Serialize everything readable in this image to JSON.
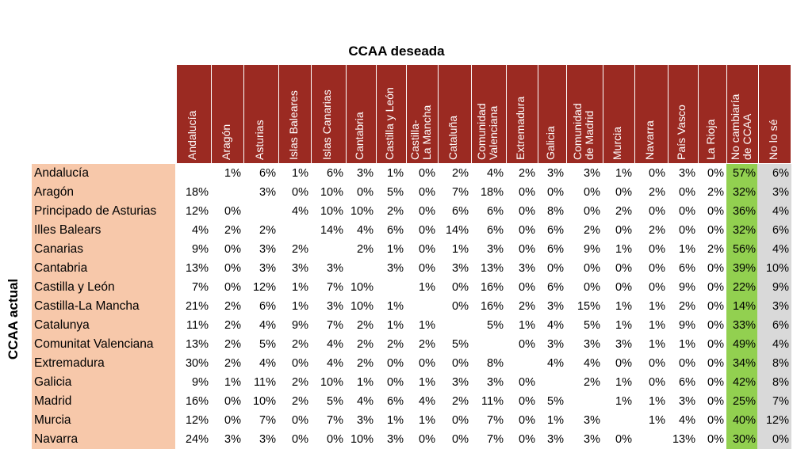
{
  "chart_data": {
    "type": "table",
    "title": "CCAA deseada",
    "ylabel": "CCAA actual",
    "columns": [
      "Andalucía",
      "Aragón",
      "Asturias",
      "Islas Baleares",
      "Islas Canarias",
      "Cantabria",
      "Castilla y León",
      "Castilla-\nLa Mancha",
      "Cataluña",
      "Comunidad\nValenciana",
      "Extremadura",
      "Galicia",
      "Comunidad\nde Madrid",
      "Murcia",
      "Navarra",
      "País Vasco",
      "La Rioja",
      "No cambiaría\nde CCAA",
      "No lo sé"
    ],
    "rows": [
      {
        "label": "Andalucía",
        "values": [
          "",
          "1%",
          "6%",
          "1%",
          "6%",
          "3%",
          "1%",
          "0%",
          "2%",
          "4%",
          "2%",
          "3%",
          "3%",
          "1%",
          "0%",
          "3%",
          "0%",
          "57%",
          "6%"
        ]
      },
      {
        "label": "Aragón",
        "values": [
          "18%",
          "",
          "3%",
          "0%",
          "10%",
          "0%",
          "5%",
          "0%",
          "7%",
          "18%",
          "0%",
          "0%",
          "0%",
          "0%",
          "2%",
          "0%",
          "2%",
          "32%",
          "3%"
        ]
      },
      {
        "label": "Principado de Asturias",
        "values": [
          "12%",
          "0%",
          "",
          "4%",
          "10%",
          "10%",
          "2%",
          "0%",
          "6%",
          "6%",
          "0%",
          "8%",
          "0%",
          "2%",
          "0%",
          "0%",
          "0%",
          "36%",
          "4%"
        ]
      },
      {
        "label": "Illes Balears",
        "values": [
          "4%",
          "2%",
          "2%",
          "",
          "14%",
          "4%",
          "6%",
          "0%",
          "14%",
          "6%",
          "0%",
          "6%",
          "2%",
          "0%",
          "2%",
          "0%",
          "0%",
          "32%",
          "6%"
        ]
      },
      {
        "label": "Canarias",
        "values": [
          "9%",
          "0%",
          "3%",
          "2%",
          "",
          "2%",
          "1%",
          "0%",
          "1%",
          "3%",
          "0%",
          "6%",
          "9%",
          "1%",
          "0%",
          "1%",
          "2%",
          "56%",
          "4%"
        ]
      },
      {
        "label": "Cantabria",
        "values": [
          "13%",
          "0%",
          "3%",
          "3%",
          "3%",
          "",
          "3%",
          "0%",
          "3%",
          "13%",
          "3%",
          "0%",
          "0%",
          "0%",
          "0%",
          "6%",
          "0%",
          "39%",
          "10%"
        ]
      },
      {
        "label": "Castilla y León",
        "values": [
          "7%",
          "0%",
          "12%",
          "1%",
          "7%",
          "10%",
          "",
          "1%",
          "0%",
          "16%",
          "0%",
          "6%",
          "0%",
          "0%",
          "0%",
          "9%",
          "0%",
          "22%",
          "9%"
        ]
      },
      {
        "label": "Castilla-La Mancha",
        "values": [
          "21%",
          "2%",
          "6%",
          "1%",
          "3%",
          "10%",
          "1%",
          "",
          "0%",
          "16%",
          "2%",
          "3%",
          "15%",
          "1%",
          "1%",
          "2%",
          "0%",
          "14%",
          "3%"
        ]
      },
      {
        "label": "Catalunya",
        "values": [
          "11%",
          "2%",
          "4%",
          "9%",
          "7%",
          "2%",
          "1%",
          "1%",
          "",
          "5%",
          "1%",
          "4%",
          "5%",
          "1%",
          "1%",
          "9%",
          "0%",
          "33%",
          "6%"
        ]
      },
      {
        "label": "Comunitat Valenciana",
        "values": [
          "13%",
          "2%",
          "5%",
          "2%",
          "4%",
          "2%",
          "2%",
          "2%",
          "5%",
          "",
          "0%",
          "3%",
          "3%",
          "3%",
          "1%",
          "1%",
          "0%",
          "49%",
          "4%"
        ]
      },
      {
        "label": "Extremadura",
        "values": [
          "30%",
          "2%",
          "4%",
          "0%",
          "4%",
          "2%",
          "0%",
          "0%",
          "0%",
          "8%",
          "",
          "4%",
          "4%",
          "0%",
          "0%",
          "0%",
          "0%",
          "34%",
          "8%"
        ]
      },
      {
        "label": "Galicia",
        "values": [
          "9%",
          "1%",
          "11%",
          "2%",
          "10%",
          "1%",
          "0%",
          "1%",
          "3%",
          "3%",
          "0%",
          "",
          "2%",
          "1%",
          "0%",
          "6%",
          "0%",
          "42%",
          "8%"
        ]
      },
      {
        "label": "Madrid",
        "values": [
          "16%",
          "0%",
          "10%",
          "2%",
          "5%",
          "4%",
          "6%",
          "4%",
          "2%",
          "11%",
          "0%",
          "5%",
          "",
          "1%",
          "1%",
          "3%",
          "0%",
          "25%",
          "7%"
        ]
      },
      {
        "label": "Murcia",
        "values": [
          "12%",
          "0%",
          "7%",
          "0%",
          "7%",
          "3%",
          "1%",
          "1%",
          "0%",
          "7%",
          "0%",
          "1%",
          "3%",
          "",
          "1%",
          "4%",
          "0%",
          "40%",
          "12%"
        ]
      },
      {
        "label": "Navarra",
        "values": [
          "24%",
          "3%",
          "3%",
          "0%",
          "0%",
          "10%",
          "3%",
          "0%",
          "0%",
          "7%",
          "0%",
          "3%",
          "3%",
          "0%",
          "",
          "13%",
          "0%",
          "30%",
          "0%"
        ]
      }
    ],
    "colors": {
      "header": "#9b2a22",
      "row_labels": "#f7c8aa",
      "no_change": "#92d050",
      "dont_know": "#d9d9d9"
    }
  }
}
